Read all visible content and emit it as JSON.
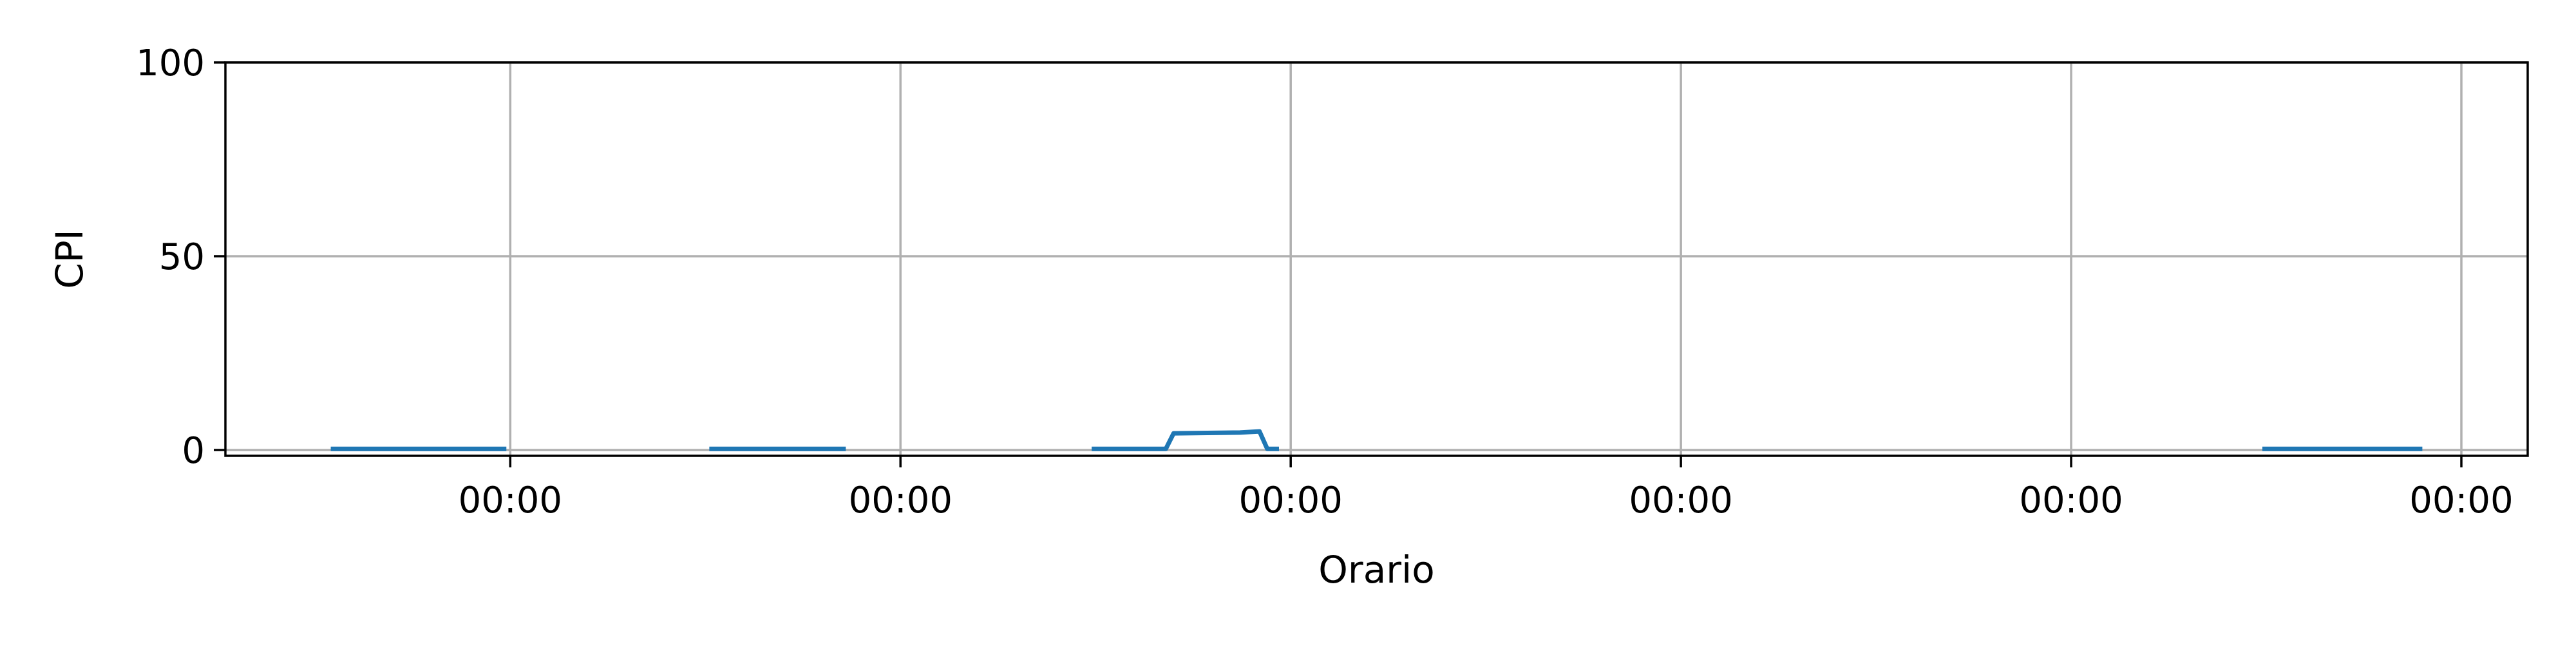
{
  "chart_data": {
    "type": "line",
    "xlabel": "Orario",
    "ylabel": "CPI",
    "x_domain": [
      0,
      5.9
    ],
    "ylim": [
      -1.5,
      100
    ],
    "x_ticks": [
      {
        "x": 0.73,
        "label": "00:00"
      },
      {
        "x": 1.73,
        "label": "00:00"
      },
      {
        "x": 2.73,
        "label": "00:00"
      },
      {
        "x": 3.73,
        "label": "00:00"
      },
      {
        "x": 4.73,
        "label": "00:00"
      },
      {
        "x": 5.73,
        "label": "00:00"
      }
    ],
    "y_ticks": [
      0,
      50,
      100
    ],
    "grid": true,
    "series": [
      {
        "color": "#1f77b4",
        "segments": [
          [
            [
              0.27,
              0.3
            ],
            [
              0.72,
              0.3
            ]
          ],
          [
            [
              1.24,
              0.3
            ],
            [
              1.59,
              0.3
            ]
          ],
          [
            [
              2.22,
              0.3
            ],
            [
              2.41,
              0.3
            ],
            [
              2.43,
              4.3
            ],
            [
              2.6,
              4.5
            ],
            [
              2.65,
              4.8
            ],
            [
              2.67,
              0.3
            ],
            [
              2.7,
              0.3
            ]
          ],
          [
            [
              5.22,
              0.3
            ],
            [
              5.63,
              0.3
            ]
          ]
        ]
      }
    ]
  }
}
